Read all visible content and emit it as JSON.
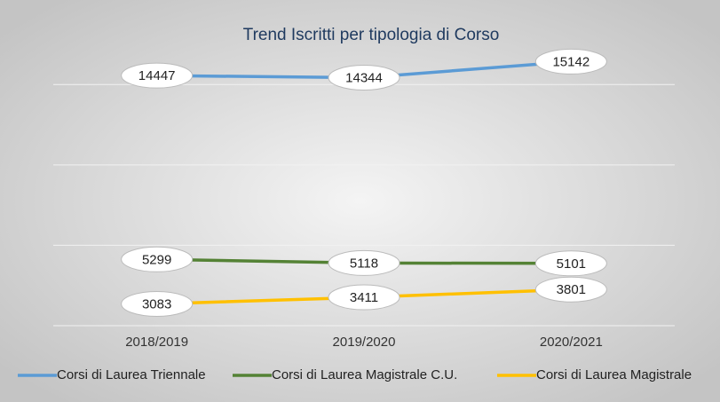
{
  "chart_data": {
    "type": "line",
    "title": "Trend Iscritti per tipologia di Corso",
    "categories": [
      "2018/2019",
      "2019/2020",
      "2020/2021"
    ],
    "series": [
      {
        "name": "Corsi di Laurea Triennale",
        "color": "#5b9bd5",
        "values": [
          14447,
          14344,
          15142
        ]
      },
      {
        "name": "Corsi di Laurea Magistrale C.U.",
        "color": "#548235",
        "values": [
          5299,
          5118,
          5101
        ]
      },
      {
        "name": "Corsi di Laurea Magistrale",
        "color": "#ffc000",
        "values": [
          3083,
          3411,
          3801
        ]
      }
    ],
    "ylim": [
      2000,
      16000
    ],
    "yticks": [
      2000,
      6000,
      10000,
      14000
    ],
    "grid": true,
    "legend": "bottom"
  }
}
